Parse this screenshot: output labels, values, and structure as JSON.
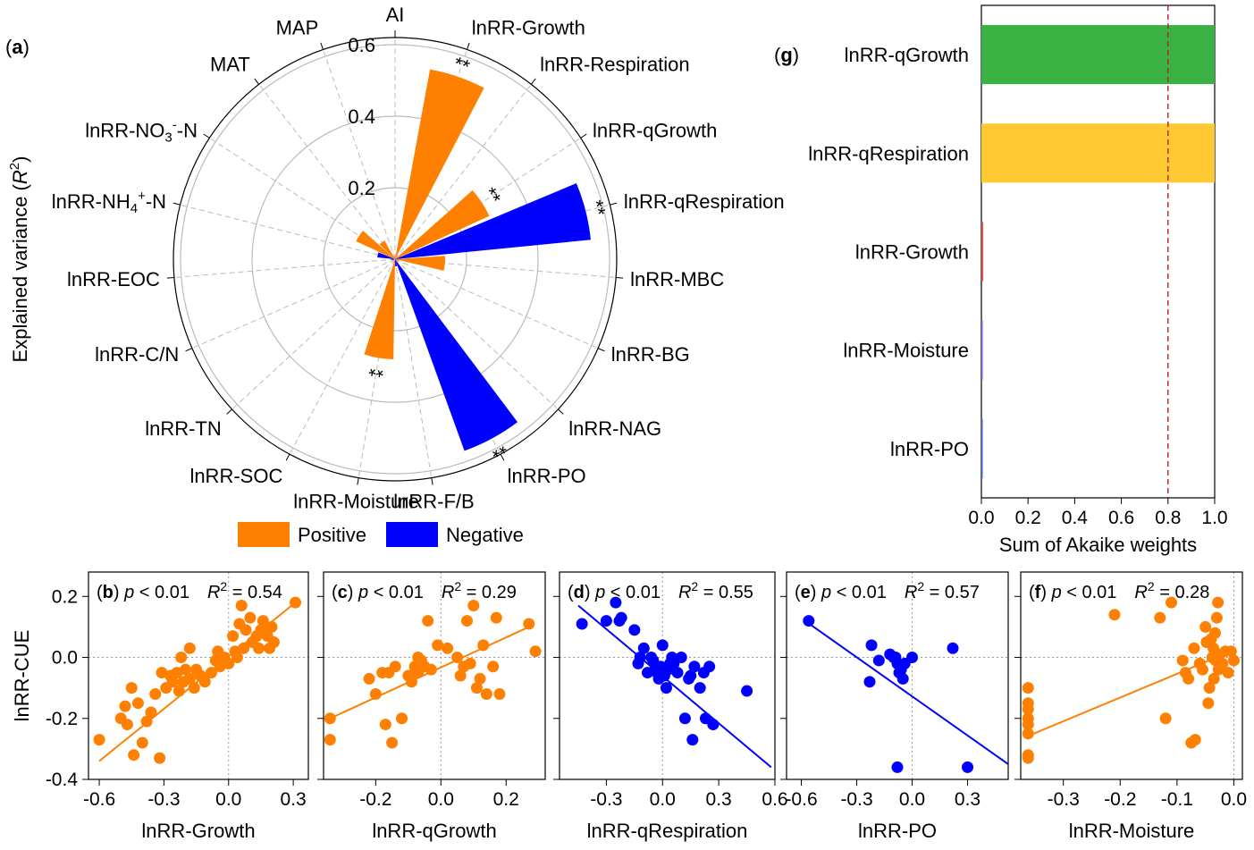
{
  "colors": {
    "positive": "#FF8000",
    "negative": "#0000FF",
    "g_growth": "#3BB143",
    "g_respiration": "#FFC933",
    "g_growth_small": "#D9534F",
    "g_moisture": "#7B68EE",
    "g_po": "#4A6FD8",
    "ref_line": "#B22222",
    "grid": "#BBBBBB"
  },
  "chart_data": [
    {
      "id": "a",
      "panel_label": "a",
      "type": "bar",
      "subtype": "polar",
      "ylabel_main": "Explained variance (",
      "ylabel_sym": "R",
      "ylabel_sup": "2",
      "ylabel_end": ")",
      "r_ticks": [
        "0.2",
        "0.4",
        "0.6"
      ],
      "ylim": [
        0,
        0.62
      ],
      "categories": [
        {
          "main": "AI"
        },
        {
          "main": "lnRR-Growth"
        },
        {
          "main": "lnRR-Respiration"
        },
        {
          "main": "lnRR-qGrowth"
        },
        {
          "main": "lnRR-qRespiration"
        },
        {
          "main": "lnRR-MBC"
        },
        {
          "main": "lnRR-BG"
        },
        {
          "main": "lnRR-NAG"
        },
        {
          "main": "lnRR-PO"
        },
        {
          "main": "lnRR-F/B"
        },
        {
          "main": "lnRR-Moisture"
        },
        {
          "main": "lnRR-SOC"
        },
        {
          "main": "lnRR-TN"
        },
        {
          "main": "lnRR-C/N"
        },
        {
          "main": "lnRR-EOC"
        },
        {
          "main": "lnRR-NH",
          "sub": "4",
          "sup": "+",
          "tail": "-N"
        },
        {
          "main": "lnRR-NO",
          "sub": "3",
          "sup": "-",
          "tail": "-N"
        },
        {
          "main": "MAT"
        },
        {
          "main": "MAP"
        }
      ],
      "values": [
        0.01,
        0.54,
        0.0,
        0.29,
        0.55,
        0.14,
        0.01,
        0.0,
        0.57,
        0.02,
        0.28,
        0.0,
        0.0,
        0.0,
        0.01,
        0.05,
        0.12,
        0.06,
        0.0
      ],
      "direction": [
        "pos",
        "pos",
        "pos",
        "pos",
        "neg",
        "pos",
        "pos",
        "pos",
        "neg",
        "neg",
        "pos",
        "pos",
        "pos",
        "pos",
        "neg",
        "neg",
        "pos",
        "pos",
        "pos"
      ],
      "significance": [
        "",
        "**",
        "",
        "**",
        "**",
        "",
        "",
        "",
        "**",
        "",
        "**",
        "",
        "",
        "",
        "",
        "",
        "",
        "",
        ""
      ],
      "legend": [
        "Positive",
        "Negative"
      ],
      "legend_position": "bottom"
    },
    {
      "id": "b",
      "panel_label": "b",
      "type": "scatter",
      "color_key": "positive",
      "p_text": "p",
      "p_rest": " < 0.01",
      "r2_value": " = 0.54",
      "xlabel": "lnRR-Growth",
      "ylabel": "lnRR-CUE",
      "xlim": [
        -0.65,
        0.37
      ],
      "ylim": [
        -0.4,
        0.28
      ],
      "xticks": [
        -0.6,
        -0.3,
        0.0,
        0.3
      ],
      "xtick_labels": [
        "-0.6",
        "-0.3",
        "0.0",
        "0.3"
      ],
      "yticks": [
        -0.4,
        -0.2,
        0.0,
        0.2
      ],
      "ytick_labels": [
        "-0.4",
        "-0.2",
        "0.0",
        "0.2"
      ],
      "fit": [
        [
          -0.6,
          -0.34
        ],
        [
          0.31,
          0.18
        ]
      ],
      "points": [
        [
          -0.6,
          -0.27
        ],
        [
          -0.5,
          -0.2
        ],
        [
          -0.47,
          -0.22
        ],
        [
          -0.48,
          -0.16
        ],
        [
          -0.44,
          -0.32
        ],
        [
          -0.45,
          -0.1
        ],
        [
          -0.42,
          -0.15
        ],
        [
          -0.4,
          -0.28
        ],
        [
          -0.38,
          -0.21
        ],
        [
          -0.36,
          -0.18
        ],
        [
          -0.34,
          -0.12
        ],
        [
          -0.32,
          -0.33
        ],
        [
          -0.31,
          -0.05
        ],
        [
          -0.29,
          -0.1
        ],
        [
          -0.27,
          -0.06
        ],
        [
          -0.26,
          -0.08
        ],
        [
          -0.24,
          -0.05
        ],
        [
          -0.23,
          -0.11
        ],
        [
          -0.22,
          0.0
        ],
        [
          -0.21,
          -0.08
        ],
        [
          -0.2,
          -0.04
        ],
        [
          -0.18,
          -0.07
        ],
        [
          -0.18,
          0.03
        ],
        [
          -0.16,
          -0.1
        ],
        [
          -0.15,
          -0.04
        ],
        [
          -0.13,
          -0.06
        ],
        [
          -0.11,
          -0.08
        ],
        [
          -0.08,
          -0.05
        ],
        [
          -0.06,
          -0.01
        ],
        [
          -0.05,
          0.02
        ],
        [
          -0.04,
          -0.03
        ],
        [
          -0.02,
          0.0
        ],
        [
          0.0,
          -0.02
        ],
        [
          0.02,
          0.07
        ],
        [
          0.03,
          0.02
        ],
        [
          0.04,
          0.0
        ],
        [
          0.05,
          0.11
        ],
        [
          0.06,
          0.17
        ],
        [
          0.07,
          0.03
        ],
        [
          0.08,
          0.09
        ],
        [
          0.1,
          0.13
        ],
        [
          0.11,
          0.05
        ],
        [
          0.13,
          0.07
        ],
        [
          0.14,
          0.03
        ],
        [
          0.15,
          0.09
        ],
        [
          0.16,
          0.12
        ],
        [
          0.18,
          0.07
        ],
        [
          0.19,
          0.03
        ],
        [
          0.2,
          0.1
        ],
        [
          0.21,
          0.05
        ],
        [
          0.31,
          0.18
        ]
      ]
    },
    {
      "id": "c",
      "panel_label": "c",
      "type": "scatter",
      "color_key": "positive",
      "p_text": "p",
      "p_rest": " < 0.01",
      "r2_value": " = 0.29",
      "xlabel": "lnRR-qGrowth",
      "ylabel": "",
      "xlim": [
        -0.36,
        0.32
      ],
      "ylim": [
        -0.4,
        0.28
      ],
      "xticks": [
        -0.2,
        0.0,
        0.2
      ],
      "xtick_labels": [
        "-0.2",
        "0.0",
        "0.2"
      ],
      "yticks": [
        -0.4,
        -0.2,
        0.0,
        0.2
      ],
      "ytick_labels": [],
      "fit": [
        [
          -0.34,
          -0.2
        ],
        [
          0.27,
          0.1
        ]
      ],
      "points": [
        [
          -0.34,
          -0.2
        ],
        [
          -0.34,
          -0.27
        ],
        [
          -0.22,
          -0.07
        ],
        [
          -0.2,
          -0.12
        ],
        [
          -0.18,
          -0.05
        ],
        [
          -0.17,
          -0.22
        ],
        [
          -0.16,
          -0.05
        ],
        [
          -0.15,
          -0.28
        ],
        [
          -0.14,
          -0.03
        ],
        [
          -0.12,
          -0.2
        ],
        [
          -0.1,
          -0.06
        ],
        [
          -0.09,
          -0.08
        ],
        [
          -0.08,
          -0.03
        ],
        [
          -0.07,
          0.0
        ],
        [
          -0.07,
          -0.05
        ],
        [
          -0.06,
          -0.01
        ],
        [
          -0.05,
          -0.03
        ],
        [
          -0.04,
          0.12
        ],
        [
          -0.03,
          -0.04
        ],
        [
          -0.01,
          0.04
        ],
        [
          0.02,
          0.03
        ],
        [
          0.05,
          0.0
        ],
        [
          0.06,
          -0.06
        ],
        [
          0.07,
          -0.03
        ],
        [
          0.08,
          0.12
        ],
        [
          0.09,
          -0.02
        ],
        [
          0.1,
          0.17
        ],
        [
          0.11,
          -0.1
        ],
        [
          0.12,
          -0.07
        ],
        [
          0.13,
          0.04
        ],
        [
          0.14,
          -0.12
        ],
        [
          0.16,
          -0.03
        ],
        [
          0.17,
          0.13
        ],
        [
          0.18,
          -0.12
        ],
        [
          0.27,
          0.11
        ],
        [
          0.29,
          0.02
        ]
      ]
    },
    {
      "id": "d",
      "panel_label": "d",
      "type": "scatter",
      "color_key": "negative",
      "p_text": "p",
      "p_rest": " < 0.01",
      "r2_value": " = 0.55",
      "xlabel": "lnRR-qRespiration",
      "ylabel": "",
      "xlim": [
        -0.55,
        0.6
      ],
      "ylim": [
        -0.4,
        0.28
      ],
      "xticks": [
        -0.3,
        0.0,
        0.3,
        0.6
      ],
      "xtick_labels": [
        "-0.3",
        "0.0",
        "0.3",
        "0.6"
      ],
      "yticks": [
        -0.4,
        -0.2,
        0.0,
        0.2
      ],
      "ytick_labels": [],
      "fit": [
        [
          -0.45,
          0.17
        ],
        [
          0.58,
          -0.36
        ]
      ],
      "points": [
        [
          -0.43,
          0.11
        ],
        [
          -0.3,
          0.12
        ],
        [
          -0.25,
          0.18
        ],
        [
          -0.23,
          0.12
        ],
        [
          -0.22,
          0.13
        ],
        [
          -0.15,
          0.09
        ],
        [
          -0.13,
          -0.02
        ],
        [
          -0.12,
          0.0
        ],
        [
          -0.1,
          0.03
        ],
        [
          -0.08,
          -0.05
        ],
        [
          -0.06,
          0.0
        ],
        [
          -0.05,
          -0.01
        ],
        [
          -0.04,
          -0.04
        ],
        [
          -0.03,
          -0.05
        ],
        [
          -0.02,
          -0.07
        ],
        [
          -0.01,
          -0.03
        ],
        [
          0.0,
          0.04
        ],
        [
          0.01,
          -0.06
        ],
        [
          0.02,
          -0.1
        ],
        [
          0.03,
          -0.04
        ],
        [
          0.04,
          -0.02
        ],
        [
          0.05,
          0.0
        ],
        [
          0.06,
          -0.02
        ],
        [
          0.08,
          -0.05
        ],
        [
          0.1,
          0.0
        ],
        [
          0.12,
          -0.2
        ],
        [
          0.14,
          -0.07
        ],
        [
          0.15,
          -0.06
        ],
        [
          0.16,
          -0.27
        ],
        [
          0.17,
          -0.03
        ],
        [
          0.2,
          -0.1
        ],
        [
          0.22,
          -0.05
        ],
        [
          0.23,
          -0.2
        ],
        [
          0.25,
          -0.03
        ],
        [
          0.27,
          -0.22
        ],
        [
          0.45,
          -0.11
        ]
      ]
    },
    {
      "id": "e",
      "panel_label": "e",
      "type": "scatter",
      "color_key": "negative",
      "p_text": "p",
      "p_rest": " < 0.01",
      "r2_value": " = 0.57",
      "xlabel": "lnRR-PO",
      "ylabel": "",
      "xlim": [
        -0.68,
        0.52
      ],
      "ylim": [
        -0.4,
        0.28
      ],
      "xticks": [
        -0.6,
        -0.3,
        0.0,
        0.3
      ],
      "xtick_labels": [
        "-0.6",
        "-0.3",
        "0.0",
        "0.3"
      ],
      "yticks": [
        -0.4,
        -0.2,
        0.0,
        0.2
      ],
      "ytick_labels": [],
      "fit": [
        [
          -0.58,
          0.12
        ],
        [
          0.52,
          -0.35
        ]
      ],
      "points": [
        [
          -0.56,
          0.12
        ],
        [
          -0.23,
          -0.08
        ],
        [
          -0.22,
          0.04
        ],
        [
          -0.18,
          -0.01
        ],
        [
          -0.12,
          0.01
        ],
        [
          -0.1,
          0.0
        ],
        [
          -0.09,
          0.0
        ],
        [
          -0.08,
          -0.02
        ],
        [
          -0.07,
          -0.05
        ],
        [
          -0.06,
          -0.04
        ],
        [
          -0.05,
          -0.07
        ],
        [
          -0.04,
          -0.02
        ],
        [
          0.0,
          0.0
        ],
        [
          0.22,
          0.03
        ],
        [
          -0.08,
          -0.36
        ],
        [
          0.3,
          -0.36
        ]
      ]
    },
    {
      "id": "f",
      "panel_label": "f",
      "type": "scatter",
      "color_key": "positive",
      "p_text": "p",
      "p_rest": " < 0.01",
      "r2_value": " = 0.28",
      "xlabel": "lnRR-Moisture",
      "ylabel": "",
      "xlim": [
        -0.375,
        0.015
      ],
      "ylim": [
        -0.4,
        0.28
      ],
      "xticks": [
        -0.3,
        -0.2,
        -0.1,
        0.0
      ],
      "xtick_labels": [
        "-0.3",
        "-0.2",
        "-0.1",
        "0.0"
      ],
      "yticks": [
        -0.4,
        -0.2,
        0.0,
        0.2
      ],
      "ytick_labels": [],
      "fit": [
        [
          -0.365,
          -0.26
        ],
        [
          -0.005,
          0.02
        ]
      ],
      "points": [
        [
          -0.362,
          -0.32
        ],
        [
          -0.362,
          -0.33
        ],
        [
          -0.362,
          -0.25
        ],
        [
          -0.362,
          -0.22
        ],
        [
          -0.362,
          -0.15
        ],
        [
          -0.362,
          -0.1
        ],
        [
          -0.362,
          -0.17
        ],
        [
          -0.362,
          -0.2
        ],
        [
          -0.21,
          0.14
        ],
        [
          -0.13,
          0.13
        ],
        [
          -0.12,
          -0.2
        ],
        [
          -0.11,
          0.18
        ],
        [
          -0.09,
          -0.01
        ],
        [
          -0.085,
          -0.05
        ],
        [
          -0.08,
          -0.07
        ],
        [
          -0.075,
          -0.28
        ],
        [
          -0.07,
          0.03
        ],
        [
          -0.068,
          -0.27
        ],
        [
          -0.06,
          -0.02
        ],
        [
          -0.055,
          -0.04
        ],
        [
          -0.05,
          0.1
        ],
        [
          -0.048,
          0.05
        ],
        [
          -0.045,
          -0.15
        ],
        [
          -0.043,
          -0.1
        ],
        [
          -0.04,
          0.06
        ],
        [
          -0.038,
          0.0
        ],
        [
          -0.036,
          0.03
        ],
        [
          -0.035,
          -0.07
        ],
        [
          -0.033,
          0.08
        ],
        [
          -0.032,
          -0.01
        ],
        [
          -0.03,
          0.13
        ],
        [
          -0.028,
          0.18
        ],
        [
          -0.027,
          -0.04
        ],
        [
          -0.025,
          0.01
        ],
        [
          -0.02,
          -0.02
        ],
        [
          -0.015,
          0.02
        ],
        [
          -0.01,
          -0.05
        ],
        [
          -0.005,
          0.02
        ],
        [
          0.0,
          -0.01
        ]
      ]
    },
    {
      "id": "g",
      "panel_label": "g",
      "type": "bar",
      "subtype": "horizontal",
      "categories": [
        "lnRR-qGrowth",
        "lnRR-qRespiration",
        "lnRR-Growth",
        "lnRR-Moisture",
        "lnRR-PO"
      ],
      "values": [
        1.0,
        1.0,
        0.008,
        0.006,
        0.006
      ],
      "bar_color_keys": [
        "g_growth",
        "g_respiration",
        "g_growth_small",
        "g_moisture",
        "g_po"
      ],
      "xlabel": "Sum of Akaike weights",
      "xlim": [
        0,
        1
      ],
      "xticks": [
        0.0,
        0.2,
        0.4,
        0.6,
        0.8,
        1.0
      ],
      "xtick_labels": [
        "0.0",
        "0.2",
        "0.4",
        "0.6",
        "0.8",
        "1.0"
      ],
      "reference_line": 0.8
    }
  ]
}
